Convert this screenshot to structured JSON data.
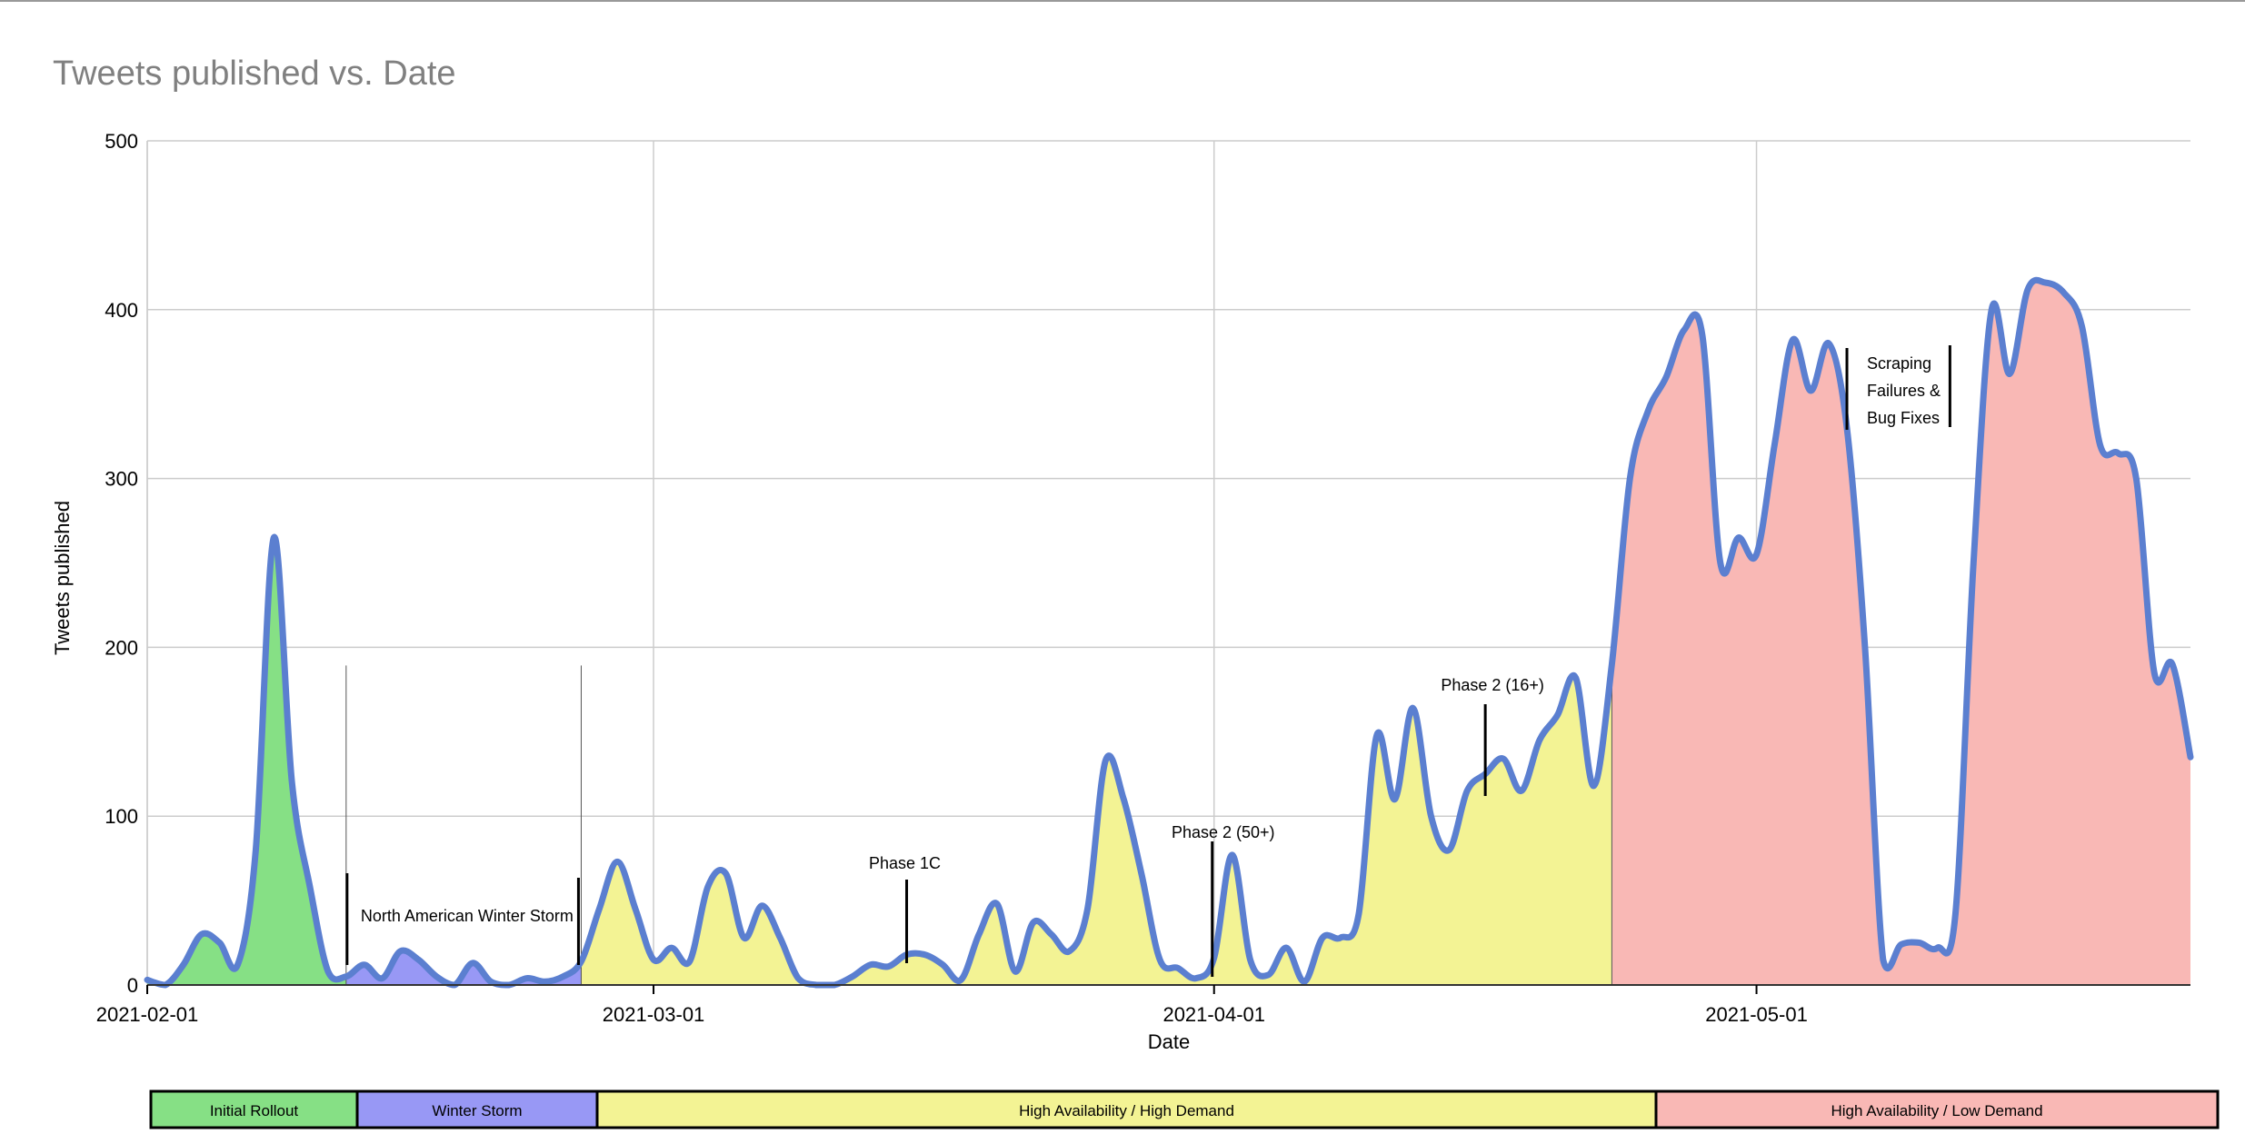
{
  "chart_data": {
    "type": "area",
    "title": "Tweets published vs. Date",
    "xlabel": "Date",
    "ylabel": "Tweets published",
    "ylim": [
      0,
      500
    ],
    "yticks": [
      0,
      100,
      200,
      300,
      400,
      500
    ],
    "xlim": [
      "2021-02-01",
      "2021-05-25"
    ],
    "xticks": [
      "2021-02-01",
      "2021-03-01",
      "2021-04-01",
      "2021-05-01"
    ],
    "grid": true,
    "line_color": "#5b7fd0",
    "series": [
      {
        "values": [
          [
            "2021-02-01",
            3
          ],
          [
            "2021-02-02",
            0
          ],
          [
            "2021-02-03",
            12
          ],
          [
            "2021-02-04",
            30
          ],
          [
            "2021-02-05",
            25
          ],
          [
            "2021-02-06",
            12
          ],
          [
            "2021-02-07",
            80
          ],
          [
            "2021-02-08",
            265
          ],
          [
            "2021-02-09",
            120
          ],
          [
            "2021-02-10",
            58
          ],
          [
            "2021-02-11",
            8
          ],
          [
            "2021-02-12",
            5
          ],
          [
            "2021-02-13",
            12
          ],
          [
            "2021-02-14",
            4
          ],
          [
            "2021-02-15",
            20
          ],
          [
            "2021-02-16",
            15
          ],
          [
            "2021-02-17",
            5
          ],
          [
            "2021-02-18",
            0
          ],
          [
            "2021-02-19",
            13
          ],
          [
            "2021-02-20",
            2
          ],
          [
            "2021-02-21",
            0
          ],
          [
            "2021-02-22",
            4
          ],
          [
            "2021-02-23",
            2
          ],
          [
            "2021-02-24",
            5
          ],
          [
            "2021-02-25",
            14
          ],
          [
            "2021-02-26",
            45
          ],
          [
            "2021-02-27",
            73
          ],
          [
            "2021-02-28",
            45
          ],
          [
            "2021-03-01",
            15
          ],
          [
            "2021-03-02",
            22
          ],
          [
            "2021-03-03",
            14
          ],
          [
            "2021-03-04",
            58
          ],
          [
            "2021-03-05",
            66
          ],
          [
            "2021-03-06",
            28
          ],
          [
            "2021-03-07",
            47
          ],
          [
            "2021-03-08",
            28
          ],
          [
            "2021-03-09",
            4
          ],
          [
            "2021-03-10",
            0
          ],
          [
            "2021-03-11",
            0
          ],
          [
            "2021-03-12",
            5
          ],
          [
            "2021-03-13",
            12
          ],
          [
            "2021-03-14",
            11
          ],
          [
            "2021-03-15",
            18
          ],
          [
            "2021-03-16",
            18
          ],
          [
            "2021-03-17",
            12
          ],
          [
            "2021-03-18",
            3
          ],
          [
            "2021-03-19",
            30
          ],
          [
            "2021-03-20",
            48
          ],
          [
            "2021-03-21",
            8
          ],
          [
            "2021-03-22",
            37
          ],
          [
            "2021-03-23",
            30
          ],
          [
            "2021-03-24",
            20
          ],
          [
            "2021-03-25",
            45
          ],
          [
            "2021-03-26",
            133
          ],
          [
            "2021-03-27",
            110
          ],
          [
            "2021-03-28",
            65
          ],
          [
            "2021-03-29",
            15
          ],
          [
            "2021-03-30",
            10
          ],
          [
            "2021-03-31",
            4
          ],
          [
            "2021-04-01",
            16
          ],
          [
            "2021-04-02",
            77
          ],
          [
            "2021-04-03",
            15
          ],
          [
            "2021-04-04",
            6
          ],
          [
            "2021-04-05",
            22
          ],
          [
            "2021-04-06",
            2
          ],
          [
            "2021-04-07",
            28
          ],
          [
            "2021-04-08",
            28
          ],
          [
            "2021-04-09",
            42
          ],
          [
            "2021-04-10",
            148
          ],
          [
            "2021-04-11",
            110
          ],
          [
            "2021-04-12",
            164
          ],
          [
            "2021-04-13",
            100
          ],
          [
            "2021-04-14",
            80
          ],
          [
            "2021-04-15",
            115
          ],
          [
            "2021-04-16",
            125
          ],
          [
            "2021-04-17",
            134
          ],
          [
            "2021-04-18",
            115
          ],
          [
            "2021-04-19",
            145
          ],
          [
            "2021-04-20",
            160
          ],
          [
            "2021-04-21",
            182
          ],
          [
            "2021-04-22",
            118
          ],
          [
            "2021-04-23",
            190
          ],
          [
            "2021-04-24",
            300
          ],
          [
            "2021-04-25",
            340
          ],
          [
            "2021-04-26",
            360
          ],
          [
            "2021-04-27",
            388
          ],
          [
            "2021-04-28",
            385
          ],
          [
            "2021-04-29",
            250
          ],
          [
            "2021-04-30",
            265
          ],
          [
            "2021-05-01",
            255
          ],
          [
            "2021-05-02",
            320
          ],
          [
            "2021-05-03",
            382
          ],
          [
            "2021-05-04",
            352
          ],
          [
            "2021-05-05",
            380
          ],
          [
            "2021-05-06",
            330
          ],
          [
            "2021-05-07",
            200
          ],
          [
            "2021-05-08",
            15
          ],
          [
            "2021-05-09",
            24
          ],
          [
            "2021-05-10",
            25
          ],
          [
            "2021-05-11",
            22
          ],
          [
            "2021-05-12",
            42
          ],
          [
            "2021-05-13",
            250
          ],
          [
            "2021-05-14",
            400
          ],
          [
            "2021-05-15",
            362
          ],
          [
            "2021-05-16",
            412
          ],
          [
            "2021-05-17",
            416
          ],
          [
            "2021-05-18",
            410
          ],
          [
            "2021-05-19",
            390
          ],
          [
            "2021-05-20",
            320
          ],
          [
            "2021-05-21",
            315
          ],
          [
            "2021-05-22",
            300
          ],
          [
            "2021-05-23",
            185
          ],
          [
            "2021-05-24",
            190
          ],
          [
            "2021-05-25",
            135
          ]
        ]
      }
    ],
    "phases": [
      {
        "label": "Initial Rollout",
        "start": "2021-02-01",
        "end": "2021-02-12",
        "color": "#86e085"
      },
      {
        "label": "Winter Storm",
        "start": "2021-02-12",
        "end": "2021-02-25",
        "color": "#9898f5"
      },
      {
        "label": "High Availability / High Demand",
        "start": "2021-02-25",
        "end": "2021-04-23",
        "color": "#f3f394"
      },
      {
        "label": "High Availability / Low Demand",
        "start": "2021-04-23",
        "end": "2021-05-25",
        "color": "#f9b8b5"
      }
    ],
    "annotations": [
      {
        "text": "North American Winter Storm",
        "date": "2021-02-12",
        "date_end": "2021-02-25"
      },
      {
        "text": "Phase 1C",
        "date": "2021-03-15"
      },
      {
        "text": "Phase 2 (50+)",
        "date": "2021-04-01"
      },
      {
        "text": "Phase 2 (16+)",
        "date": "2021-04-16"
      },
      {
        "text_lines": [
          "Scraping",
          "Failures &",
          "Bug Fixes"
        ],
        "date": "2021-05-06",
        "date_end": "2021-05-12"
      }
    ]
  }
}
